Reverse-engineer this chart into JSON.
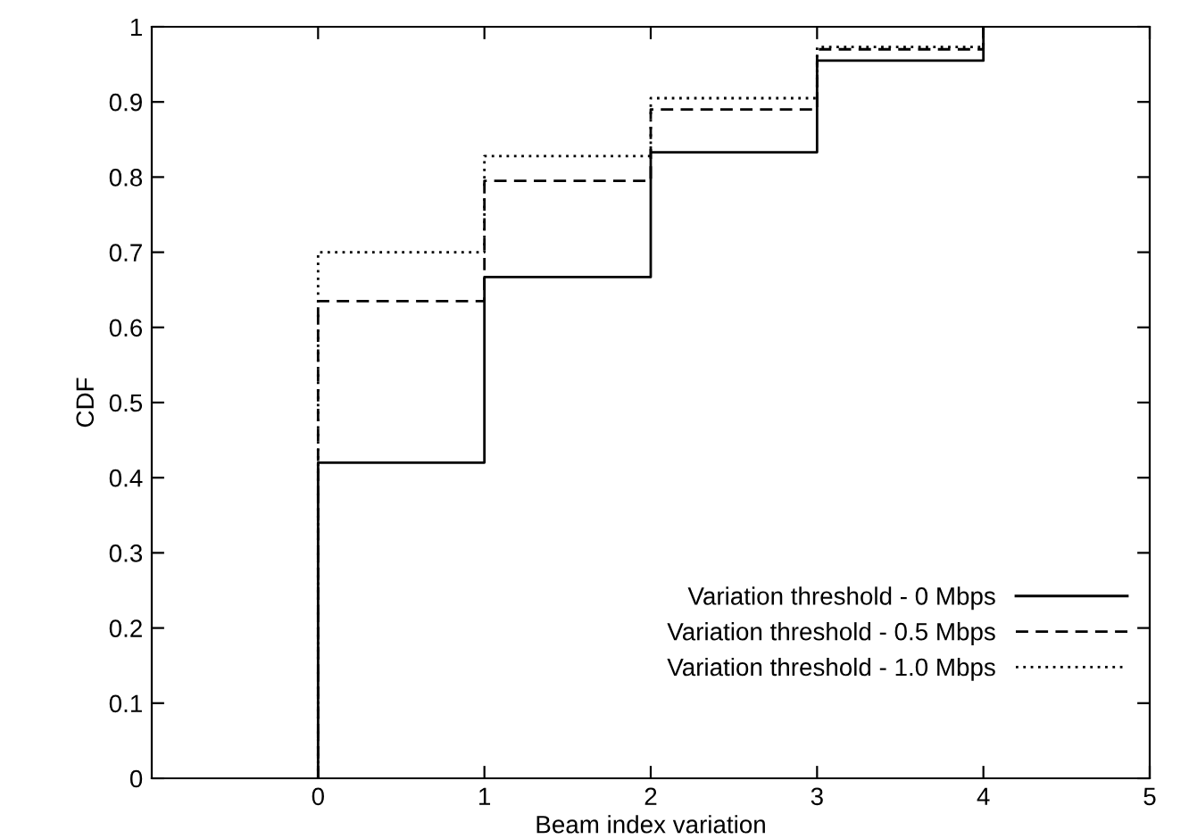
{
  "chart_data": {
    "type": "step",
    "xlabel": "Beam index variation",
    "ylabel": "CDF",
    "xlim": [
      -1,
      5
    ],
    "xticks": [
      0,
      1,
      2,
      3,
      4,
      5
    ],
    "ylim": [
      0,
      1
    ],
    "yticks": [
      0,
      0.1,
      0.2,
      0.3,
      0.4,
      0.5,
      0.6,
      0.7,
      0.8,
      0.9,
      1
    ],
    "x": [
      0,
      0,
      1,
      2,
      3,
      4
    ],
    "series": [
      {
        "name": "Variation threshold - 0 Mbps",
        "color": "#000000",
        "line_style": "solid",
        "values": [
          0,
          0.42,
          0.667,
          0.833,
          0.955,
          1
        ]
      },
      {
        "name": "Variation threshold - 0.5 Mbps",
        "color": "#000000",
        "line_style": "dashed",
        "values": [
          0,
          0.635,
          0.795,
          0.89,
          0.97,
          1
        ]
      },
      {
        "name": "Variation threshold - 1.0 Mbps",
        "color": "#000000",
        "line_style": "dotted",
        "values": [
          0,
          0.7,
          0.828,
          0.905,
          0.973,
          1
        ]
      }
    ],
    "legend": "bottom right",
    "grid": false
  }
}
